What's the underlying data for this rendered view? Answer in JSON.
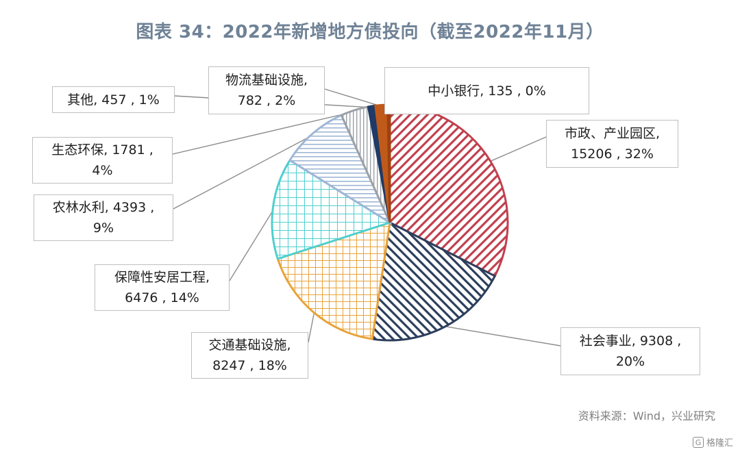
{
  "title": "图表 34：2022年新增地方债投向（截至2022年11月）",
  "source": "资料来源：Wind，兴业研究",
  "watermark": "格隆汇",
  "chart_data": {
    "type": "pie",
    "title": "图表 34：2022年新增地方债投向（截至2022年11月）",
    "slices": [
      {
        "name": "市政、产业园区",
        "value": 15206,
        "percent": "32%",
        "color": "#c0404e",
        "pattern": "diag-down"
      },
      {
        "name": "社会事业",
        "value": 9308,
        "percent": "20%",
        "color": "#2c3e5c",
        "pattern": "diag-up"
      },
      {
        "name": "交通基础设施",
        "value": 8247,
        "percent": "18%",
        "color": "#e8a33a",
        "pattern": "grid"
      },
      {
        "name": "保障性安居工程",
        "value": 6476,
        "percent": "14%",
        "color": "#4fcfcf",
        "pattern": "grid"
      },
      {
        "name": "农林水利",
        "value": 4393,
        "percent": "9%",
        "color": "#9fb6d6",
        "pattern": "horiz"
      },
      {
        "name": "生态环保",
        "value": 1781,
        "percent": "4%",
        "color": "#9aa0a6",
        "pattern": "vert"
      },
      {
        "name": "其他",
        "value": 457,
        "percent": "1%",
        "color": "#1f3a66",
        "pattern": "solid"
      },
      {
        "name": "物流基础设施",
        "value": 782,
        "percent": "2%",
        "color": "#c05a1a",
        "pattern": "solid"
      },
      {
        "name": "中小银行",
        "value": 135,
        "percent": "0%",
        "color": "#a04010",
        "pattern": "solid"
      }
    ]
  },
  "labels": {
    "municipal": {
      "l1": "市政、产业园区,",
      "l2": "15206 , 32%"
    },
    "social": {
      "l1": "社会事业, 9308 ,",
      "l2": "20%"
    },
    "transport": {
      "l1": "交通基础设施,",
      "l2": "8247 , 18%"
    },
    "housing": {
      "l1": "保障性安居工程,",
      "l2": "6476 , 14%"
    },
    "agri": {
      "l1": "农林水利, 4393 ,",
      "l2": "9%"
    },
    "eco": {
      "l1": "生态环保, 1781 ,",
      "l2": "4%"
    },
    "other": {
      "l1": "其他, 457 , 1%"
    },
    "logistics": {
      "l1": "物流基础设施,",
      "l2": "782 , 2%"
    },
    "bank": {
      "l1": "中小银行, 135 , 0%"
    }
  }
}
